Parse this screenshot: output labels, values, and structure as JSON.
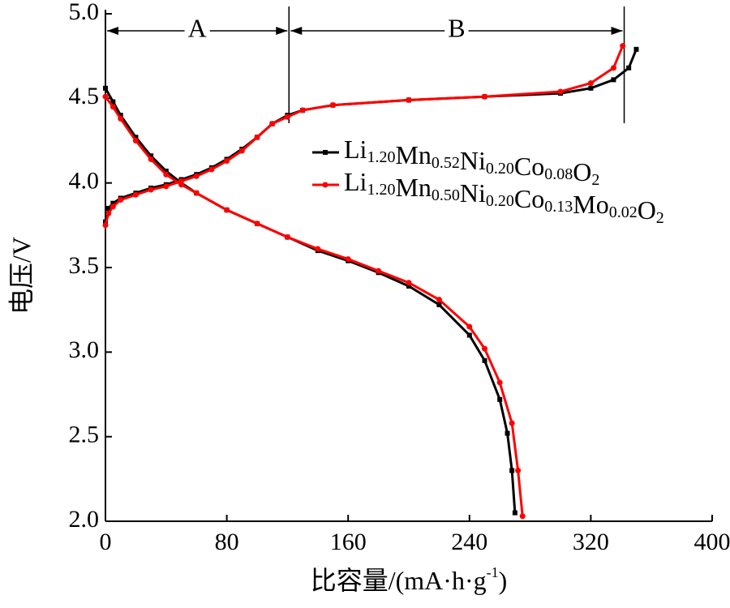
{
  "chart_data": {
    "type": "line",
    "x_label": "比容量/(mA·h·g-1)",
    "y_label": "电压/V",
    "xlim": [
      0,
      400
    ],
    "xticks": [
      0,
      80,
      160,
      240,
      320,
      400
    ],
    "ylim": [
      2,
      5
    ],
    "yticks": [
      {
        "value": 2,
        "label": "2.0"
      },
      {
        "value": 2.5,
        "label": "2.5"
      },
      {
        "value": 3,
        "label": "3.0"
      },
      {
        "value": 3.5,
        "label": "3.5"
      },
      {
        "value": 4,
        "label": "4.0"
      },
      {
        "value": 4.5,
        "label": "4.5"
      },
      {
        "value": 5,
        "label": "5.0"
      }
    ],
    "regions": [
      {
        "label": "A",
        "from": 0,
        "to": 121
      },
      {
        "label": "B",
        "from": 121,
        "to": 342
      }
    ],
    "series": [
      {
        "name": "Li1.20Mn0.52Ni0.20Co0.08O2",
        "color": "#000000",
        "marker": "square",
        "curves": [
          {
            "x": [
              0,
              2,
              5,
              10,
              20,
              30,
              40,
              50,
              60,
              70,
              80,
              90,
              100,
              110,
              120,
              130,
              150,
              200,
              250,
              300,
              320,
              335,
              345,
              350
            ],
            "values": [
              3.77,
              3.85,
              3.88,
              3.91,
              3.94,
              3.97,
              3.99,
              4.02,
              4.05,
              4.09,
              4.14,
              4.2,
              4.27,
              4.35,
              4.4,
              4.43,
              4.46,
              4.49,
              4.51,
              4.53,
              4.56,
              4.61,
              4.68,
              4.79
            ]
          },
          {
            "x": [
              0,
              5,
              10,
              20,
              30,
              40,
              50,
              60,
              80,
              100,
              120,
              140,
              160,
              180,
              200,
              220,
              240,
              250,
              260,
              265,
              268,
              270
            ],
            "values": [
              4.56,
              4.48,
              4.4,
              4.27,
              4.16,
              4.07,
              4.0,
              3.94,
              3.84,
              3.76,
              3.68,
              3.6,
              3.54,
              3.47,
              3.39,
              3.28,
              3.1,
              2.95,
              2.72,
              2.52,
              2.3,
              2.05
            ]
          }
        ]
      },
      {
        "name": "Li1.20Mn0.50Ni0.20Co0.13Mo0.02O2",
        "color": "#ff0000",
        "marker": "circle",
        "curves": [
          {
            "x": [
              0,
              2,
              5,
              10,
              20,
              30,
              40,
              50,
              60,
              70,
              80,
              90,
              100,
              110,
              120,
              130,
              150,
              200,
              250,
              300,
              320,
              335,
              341
            ],
            "values": [
              3.75,
              3.82,
              3.86,
              3.9,
              3.93,
              3.96,
              3.98,
              4.01,
              4.04,
              4.08,
              4.13,
              4.19,
              4.27,
              4.35,
              4.39,
              4.43,
              4.46,
              4.49,
              4.51,
              4.54,
              4.59,
              4.68,
              4.81
            ]
          },
          {
            "x": [
              0,
              5,
              10,
              20,
              30,
              40,
              50,
              60,
              80,
              100,
              120,
              140,
              160,
              180,
              200,
              220,
              240,
              250,
              260,
              268,
              272,
              275
            ],
            "values": [
              4.51,
              4.45,
              4.38,
              4.25,
              4.14,
              4.05,
              3.99,
              3.94,
              3.84,
              3.76,
              3.68,
              3.61,
              3.55,
              3.48,
              3.41,
              3.31,
              3.15,
              3.02,
              2.82,
              2.58,
              2.3,
              2.03
            ]
          }
        ]
      }
    ]
  }
}
